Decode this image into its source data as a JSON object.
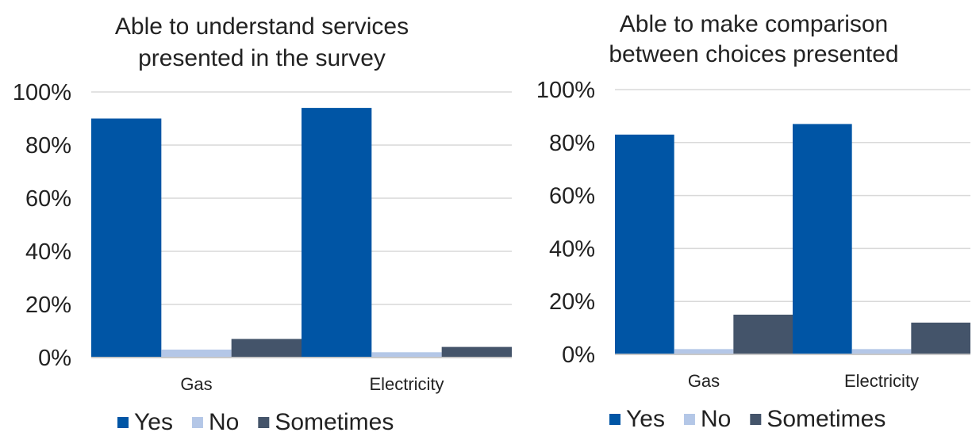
{
  "chart_data": [
    {
      "type": "bar",
      "title": "Able to understand services presented in the survey",
      "title_lines": [
        "Able to understand services",
        "presented in the survey"
      ],
      "categories": [
        "Gas",
        "Electricity"
      ],
      "series": [
        {
          "name": "Yes",
          "values": [
            90,
            94
          ]
        },
        {
          "name": "No",
          "values": [
            3,
            2
          ]
        },
        {
          "name": "Sometimes",
          "values": [
            7,
            4
          ]
        }
      ],
      "ylim": [
        0,
        100
      ],
      "yticks": [
        0,
        20,
        40,
        60,
        80,
        100
      ],
      "ytick_labels": [
        "0%",
        "20%",
        "40%",
        "60%",
        "80%",
        "100%"
      ],
      "grid": true,
      "legend_position": "bottom"
    },
    {
      "type": "bar",
      "title": "Able to make comparison between choices presented",
      "title_lines": [
        "Able to make comparison",
        "between choices presented"
      ],
      "categories": [
        "Gas",
        "Electricity"
      ],
      "series": [
        {
          "name": "Yes",
          "values": [
            83,
            87
          ]
        },
        {
          "name": "No",
          "values": [
            2,
            2
          ]
        },
        {
          "name": "Sometimes",
          "values": [
            15,
            12
          ]
        }
      ],
      "ylim": [
        0,
        100
      ],
      "yticks": [
        0,
        20,
        40,
        60,
        80,
        100
      ],
      "ytick_labels": [
        "0%",
        "20%",
        "40%",
        "60%",
        "80%",
        "100%"
      ],
      "grid": true,
      "legend_position": "bottom"
    }
  ],
  "colors": {
    "Yes": "#0055a5",
    "No": "#b4c7e7",
    "Sometimes": "#44546a"
  }
}
